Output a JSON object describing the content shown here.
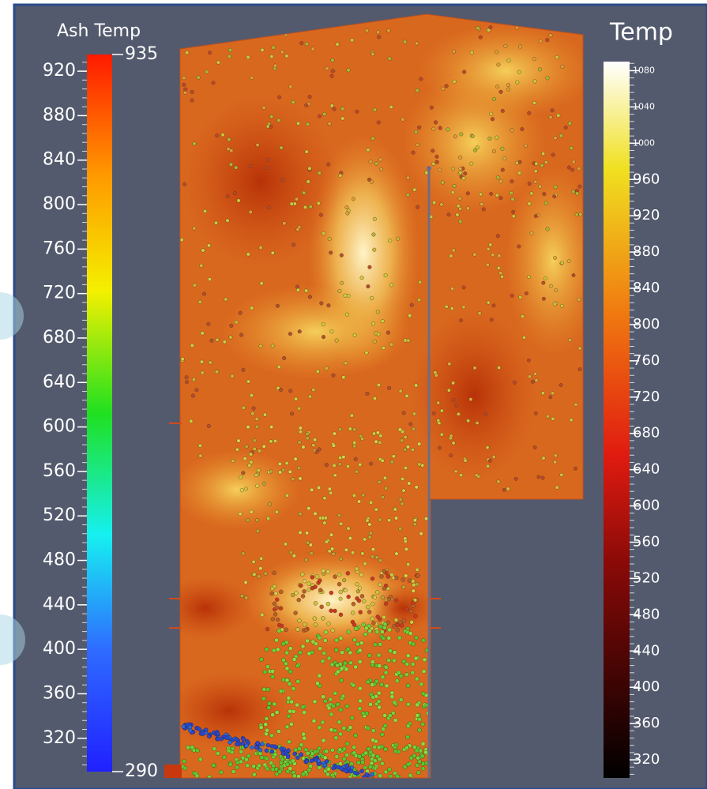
{
  "color_bars": [
    {
      "title": "Ash Temp",
      "range": [
        290,
        935
      ],
      "ticks": [
        320,
        360,
        400,
        440,
        480,
        520,
        560,
        600,
        640,
        680,
        720,
        760,
        800,
        840,
        880,
        920
      ]
    },
    {
      "title": "Temp",
      "range": [
        300,
        1090
      ],
      "ticks": [
        320,
        360,
        400,
        440,
        480,
        520,
        560,
        600,
        640,
        680,
        720,
        760,
        800,
        840,
        880,
        920,
        960,
        1000,
        1040,
        1080
      ]
    }
  ]
}
